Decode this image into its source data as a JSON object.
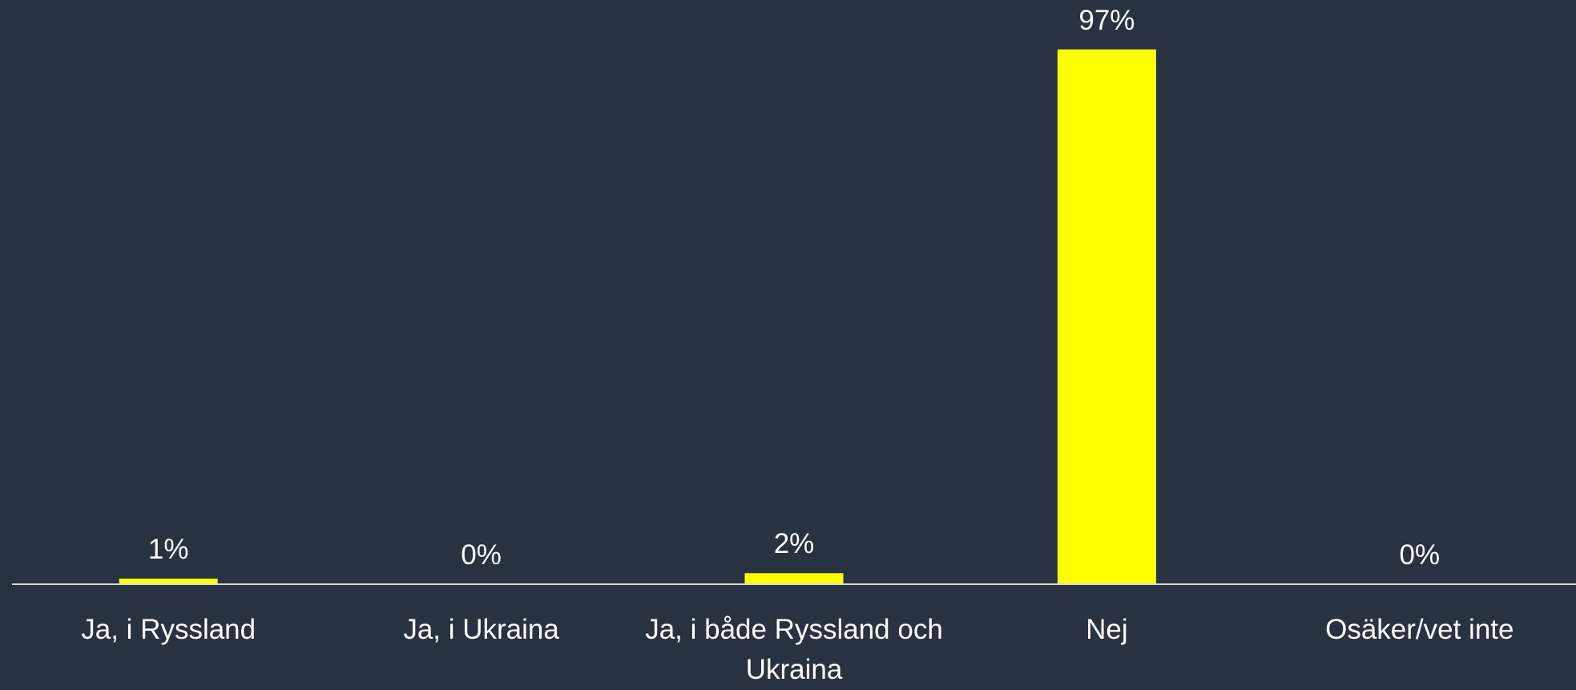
{
  "chart_data": {
    "type": "bar",
    "categories": [
      "Ja, i Ryssland",
      "Ja, i Ukraina",
      "Ja, i både Ryssland och Ukraina",
      "Nej",
      "Osäker/vet inte"
    ],
    "values": [
      1,
      0,
      2,
      97,
      0
    ],
    "value_labels": [
      "1%",
      "0%",
      "2%",
      "97%",
      "0%"
    ],
    "color": "#ffff00",
    "ylim": [
      0,
      100
    ]
  }
}
